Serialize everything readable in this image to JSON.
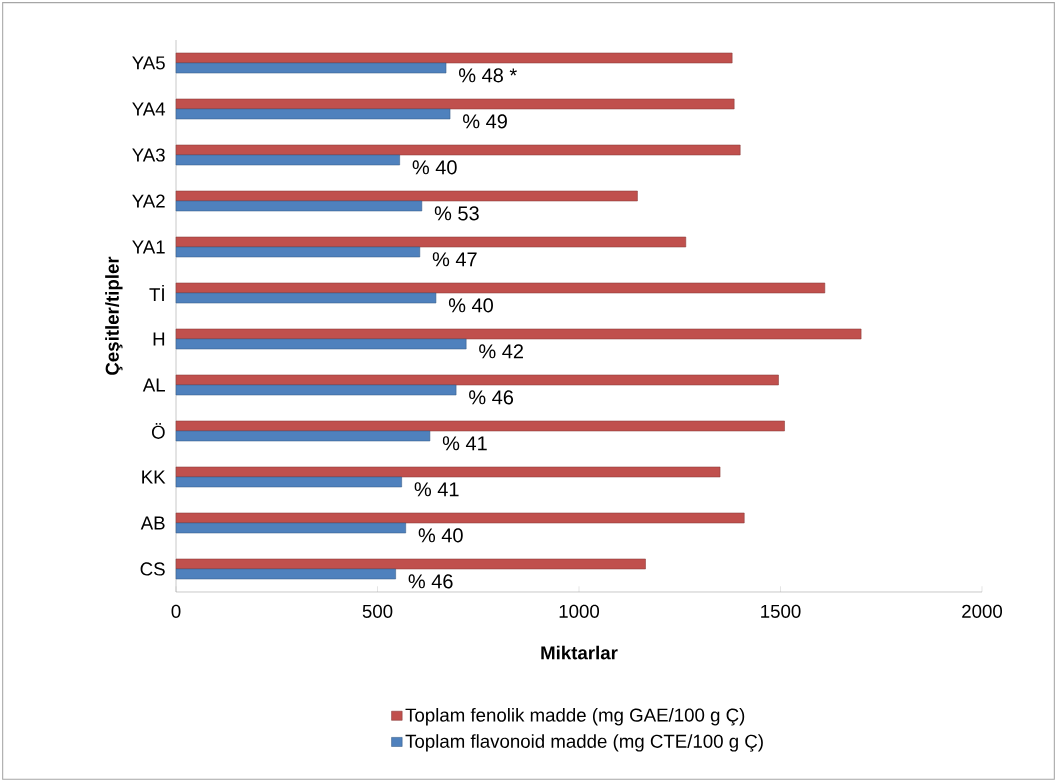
{
  "chart_data": {
    "type": "bar",
    "orientation": "horizontal",
    "xlabel": "Miktarlar",
    "ylabel": "Çeşitler/tipler",
    "categories": [
      "YA5",
      "YA4",
      "YA3",
      "YA2",
      "YA1",
      "Tİ",
      "H",
      "AL",
      "Ö",
      "KK",
      "AB",
      "CS"
    ],
    "series": [
      {
        "name": "Toplam fenolik madde (mg GAE/100 g Ç)",
        "color": "#c0504d",
        "values": [
          1380,
          1385,
          1400,
          1145,
          1265,
          1610,
          1700,
          1495,
          1510,
          1350,
          1410,
          1165
        ]
      },
      {
        "name": "Toplam flavonoid madde (mg CTE/100 g Ç)",
        "color": "#4f81bd",
        "values": [
          670,
          680,
          555,
          610,
          605,
          645,
          720,
          695,
          630,
          560,
          570,
          545
        ]
      }
    ],
    "annotations": [
      {
        "text": "% 48 *",
        "x": 670,
        "y": "YA5"
      },
      {
        "text": "% 49",
        "x": 680,
        "y": "YA4"
      },
      {
        "text": "% 40",
        "x": 555,
        "y": "YA3"
      },
      {
        "text": "% 53",
        "x": 610,
        "y": "YA2"
      },
      {
        "text": "% 47",
        "x": 605,
        "y": "YA1"
      },
      {
        "text": "% 40",
        "x": 645,
        "y": "Tİ"
      },
      {
        "text": "% 42",
        "x": 720,
        "y": "H"
      },
      {
        "text": "% 46",
        "x": 695,
        "y": "AL"
      },
      {
        "text": "% 41",
        "x": 630,
        "y": "Ö"
      },
      {
        "text": "% 41",
        "x": 560,
        "y": "KK"
      },
      {
        "text": "% 40",
        "x": 570,
        "y": "AB"
      },
      {
        "text": "% 46",
        "x": 545,
        "y": "CS"
      }
    ],
    "xlim": [
      0,
      2000
    ],
    "xticks": [
      0,
      500,
      1000,
      1500,
      2000
    ],
    "grid": false,
    "legend": "bottom"
  }
}
